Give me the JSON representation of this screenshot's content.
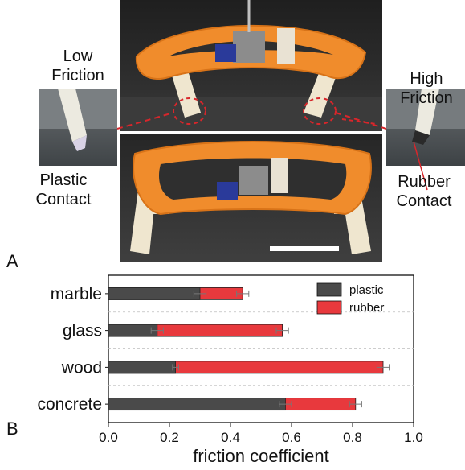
{
  "figure": {
    "panel_a_label": "A",
    "panel_b_label": "B",
    "left_top_caption": [
      "Low",
      "Friction"
    ],
    "left_bottom_caption": [
      "Plastic",
      "Contact"
    ],
    "right_top_caption": [
      "High",
      "Friction"
    ],
    "right_bottom_caption": [
      "Rubber",
      "Contact"
    ],
    "colors": {
      "plastic": "#4a4a4a",
      "rubber": "#e8393d",
      "robot_body": "#f08c2c",
      "leg": "#efe6cf",
      "dashed_highlight": "#d8262b",
      "scale_bar": "#ffffff"
    }
  },
  "chart_data": {
    "type": "bar",
    "orientation": "horizontal",
    "categories": [
      "marble",
      "glass",
      "wood",
      "concrete"
    ],
    "series": [
      {
        "name": "plastic",
        "values": [
          0.3,
          0.16,
          0.22,
          0.58
        ],
        "errors": [
          0.02,
          0.02,
          0.01,
          0.02
        ]
      },
      {
        "name": "rubber",
        "values": [
          0.44,
          0.57,
          0.9,
          0.81
        ],
        "errors": [
          0.02,
          0.02,
          0.02,
          0.02
        ]
      }
    ],
    "xlabel": "friction coefficient",
    "xlim": [
      0.0,
      1.0
    ],
    "xticks": [
      "0.0",
      "0.2",
      "0.4",
      "0.6",
      "0.8",
      "1.0"
    ],
    "legend_position": "top-right",
    "grid": "dashed horizontal separators between categories",
    "overlay": true
  }
}
